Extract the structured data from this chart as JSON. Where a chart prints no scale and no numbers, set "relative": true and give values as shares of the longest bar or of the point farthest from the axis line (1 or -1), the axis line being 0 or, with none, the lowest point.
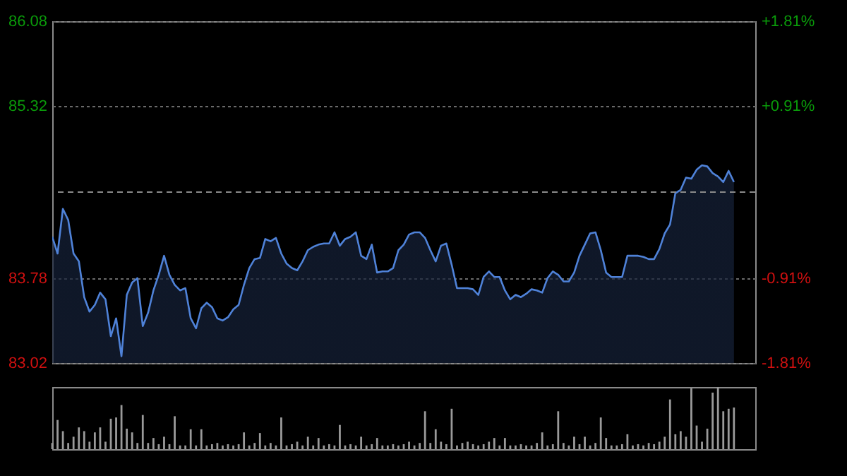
{
  "chart_data": [
    {
      "type": "area",
      "line_style": "solid",
      "grid": "y",
      "tick_labels": "y",
      "categories": [
        null,
        null,
        null,
        null,
        null,
        null,
        null,
        null,
        null,
        null,
        null,
        null,
        null,
        null,
        null,
        null,
        null,
        null,
        null,
        null,
        null,
        null,
        null,
        null,
        null,
        null,
        null,
        null,
        null,
        null,
        null,
        null,
        null,
        null,
        null,
        null,
        null,
        null,
        null,
        null,
        null,
        null,
        null,
        null,
        null,
        null,
        null,
        null,
        null,
        null,
        null,
        null,
        null,
        null,
        null,
        null,
        null,
        null,
        null,
        null,
        null,
        null,
        null,
        null,
        null,
        null,
        null,
        null,
        null,
        null,
        null,
        null,
        null,
        null,
        null,
        null,
        null,
        null,
        null,
        null,
        null,
        null,
        null,
        null,
        null,
        null,
        null,
        null,
        null,
        null,
        null,
        null,
        null,
        null,
        null,
        null,
        null,
        null,
        null,
        null,
        null,
        null,
        null,
        null,
        null,
        null,
        null,
        null,
        null,
        null,
        null,
        null,
        null,
        null,
        null,
        null,
        null,
        null,
        null,
        null,
        null,
        null,
        null,
        null,
        null,
        null,
        null,
        null,
        null,
        null,
        null,
        null,
        null
      ],
      "ylim": [
        83.02,
        86.08
      ],
      "yticks": [
        83.02,
        83.78,
        85.32,
        86.08
      ],
      "y2lim": [
        -1.81,
        1.81
      ],
      "y2ticks": [
        {
          "value": -1.81,
          "label": "-1.81%"
        },
        {
          "value": -0.91,
          "label": "-0.91%"
        },
        {
          "value": 0.91,
          "label": "+0.91%"
        },
        {
          "value": 1.81,
          "label": "+1.81%"
        }
      ],
      "ref_lines": [
        {
          "axis": "y",
          "value": 84.55,
          "line_style": "dashed"
        }
      ],
      "series": [
        {
          "color": "#4f82d8",
          "values": [
            84.15,
            84.0,
            84.4,
            84.3,
            84.0,
            83.93,
            83.61,
            83.48,
            83.54,
            83.65,
            83.59,
            83.26,
            83.42,
            83.08,
            83.63,
            83.74,
            83.78,
            83.35,
            83.47,
            83.67,
            83.81,
            83.98,
            83.81,
            83.72,
            83.67,
            83.69,
            83.42,
            83.33,
            83.51,
            83.56,
            83.52,
            83.42,
            83.4,
            83.43,
            83.5,
            83.54,
            83.72,
            83.87,
            83.95,
            83.96,
            84.13,
            84.11,
            84.14,
            84.0,
            83.91,
            83.87,
            83.85,
            83.93,
            84.03,
            84.06,
            84.08,
            84.09,
            84.09,
            84.19,
            84.07,
            84.13,
            84.15,
            84.19,
            83.98,
            83.95,
            84.08,
            83.83,
            83.84,
            83.84,
            83.87,
            84.03,
            84.08,
            84.17,
            84.19,
            84.19,
            84.14,
            84.03,
            83.93,
            84.07,
            84.09,
            83.9,
            83.69,
            83.69,
            83.69,
            83.68,
            83.63,
            83.79,
            83.84,
            83.79,
            83.79,
            83.67,
            83.59,
            83.63,
            83.61,
            83.64,
            83.68,
            83.67,
            83.65,
            83.78,
            83.84,
            83.81,
            83.75,
            83.75,
            83.83,
            83.98,
            84.08,
            84.18,
            84.19,
            84.03,
            83.83,
            83.79,
            83.79,
            83.79,
            83.98,
            83.98,
            83.98,
            83.97,
            83.95,
            83.95,
            84.04,
            84.18,
            84.26,
            84.54,
            84.57,
            84.68,
            84.67,
            84.75,
            84.79,
            84.78,
            84.72,
            84.69,
            84.64,
            84.74,
            84.64,
            null,
            null,
            null,
            null
          ]
        }
      ]
    },
    {
      "type": "bar",
      "relative": true,
      "categories": [
        null,
        null,
        null,
        null,
        null,
        null,
        null,
        null,
        null,
        null,
        null,
        null,
        null,
        null,
        null,
        null,
        null,
        null,
        null,
        null,
        null,
        null,
        null,
        null,
        null,
        null,
        null,
        null,
        null,
        null,
        null,
        null,
        null,
        null,
        null,
        null,
        null,
        null,
        null,
        null,
        null,
        null,
        null,
        null,
        null,
        null,
        null,
        null,
        null,
        null,
        null,
        null,
        null,
        null,
        null,
        null,
        null,
        null,
        null,
        null,
        null,
        null,
        null,
        null,
        null,
        null,
        null,
        null,
        null,
        null,
        null,
        null,
        null,
        null,
        null,
        null,
        null,
        null,
        null,
        null,
        null,
        null,
        null,
        null,
        null,
        null,
        null,
        null,
        null,
        null,
        null,
        null,
        null,
        null,
        null,
        null,
        null,
        null,
        null,
        null,
        null,
        null,
        null,
        null,
        null,
        null,
        null,
        null,
        null,
        null,
        null,
        null,
        null,
        null,
        null,
        null,
        null,
        null,
        null,
        null,
        null,
        null,
        null,
        null,
        null,
        null,
        null,
        null,
        null,
        null,
        null,
        null,
        null
      ],
      "series": [
        {
          "color": "#9a9a9a",
          "values": [
            0.1,
            0.47,
            0.29,
            0.1,
            0.2,
            0.35,
            0.29,
            0.12,
            0.27,
            0.35,
            0.12,
            0.49,
            0.51,
            0.71,
            0.33,
            0.27,
            0.1,
            0.55,
            0.1,
            0.18,
            0.08,
            0.2,
            0.08,
            0.53,
            0.06,
            0.06,
            0.32,
            0.06,
            0.32,
            0.06,
            0.08,
            0.1,
            0.06,
            0.08,
            0.06,
            0.08,
            0.27,
            0.06,
            0.1,
            0.26,
            0.06,
            0.1,
            0.06,
            0.51,
            0.06,
            0.08,
            0.12,
            0.06,
            0.2,
            0.06,
            0.18,
            0.06,
            0.08,
            0.06,
            0.39,
            0.06,
            0.08,
            0.06,
            0.2,
            0.06,
            0.08,
            0.18,
            0.06,
            0.06,
            0.08,
            0.06,
            0.08,
            0.12,
            0.06,
            0.1,
            0.61,
            0.1,
            0.32,
            0.12,
            0.08,
            0.65,
            0.06,
            0.1,
            0.12,
            0.08,
            0.06,
            0.08,
            0.12,
            0.18,
            0.06,
            0.18,
            0.06,
            0.06,
            0.08,
            0.06,
            0.06,
            0.1,
            0.27,
            0.06,
            0.08,
            0.61,
            0.1,
            0.06,
            0.2,
            0.08,
            0.2,
            0.06,
            0.1,
            0.51,
            0.18,
            0.06,
            0.06,
            0.08,
            0.24,
            0.06,
            0.08,
            0.06,
            0.1,
            0.08,
            0.12,
            0.2,
            0.8,
            0.24,
            0.29,
            0.2,
            0.98,
            0.38,
            0.12,
            0.33,
            0.91,
            1,
            0.61,
            0.65,
            0.67,
            null,
            null,
            null,
            null
          ]
        }
      ]
    }
  ]
}
